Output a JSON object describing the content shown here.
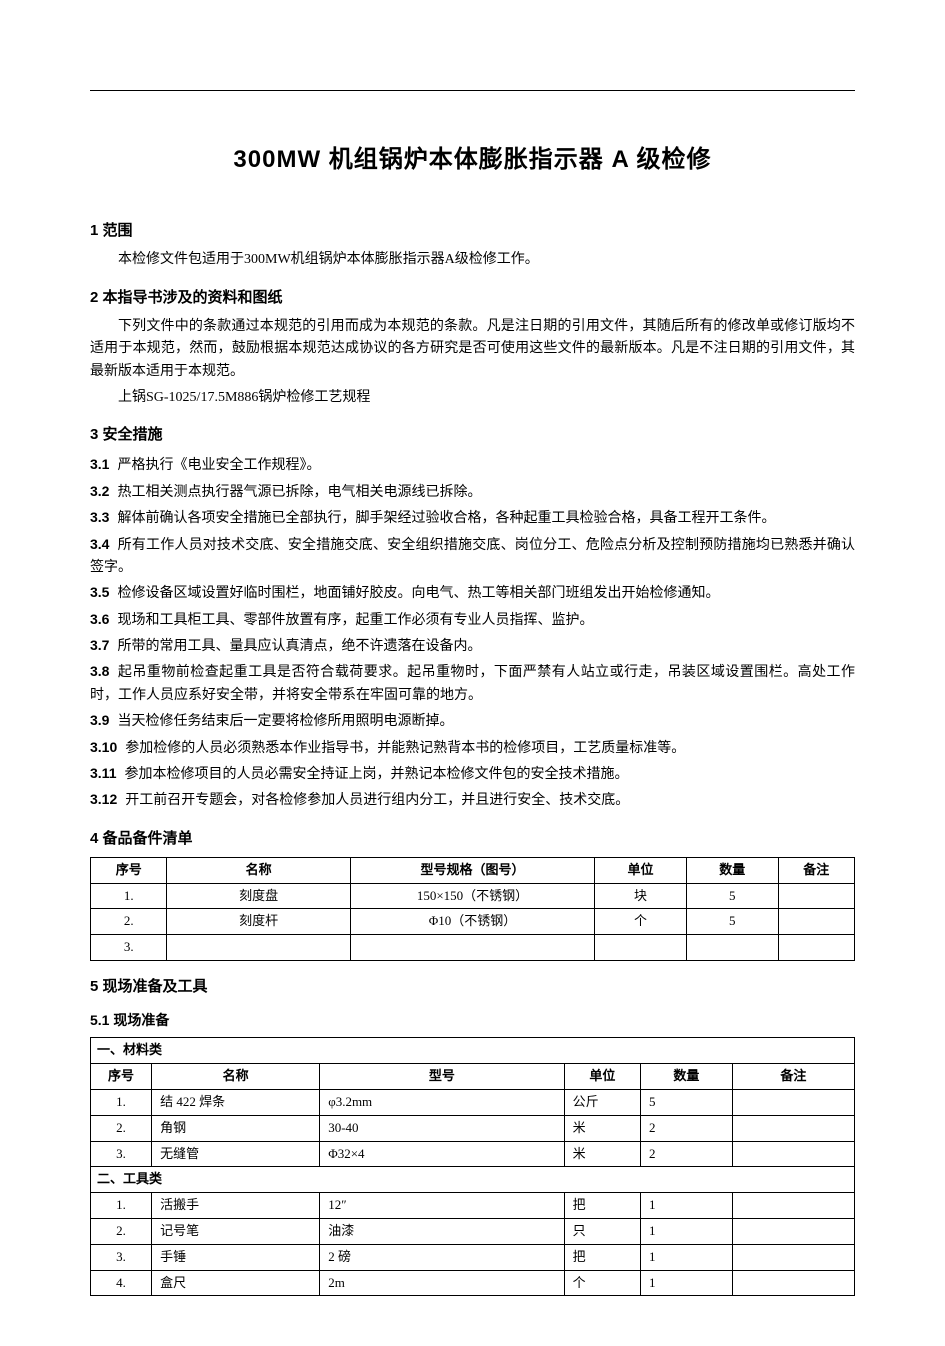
{
  "title": "300MW 机组锅炉本体膨胀指示器 A 级检修",
  "s1": {
    "heading": "1  范围",
    "p1": "本检修文件包适用于300MW机组锅炉本体膨胀指示器A级检修工作。"
  },
  "s2": {
    "heading": "2  本指导书涉及的资料和图纸",
    "p1": "下列文件中的条款通过本规范的引用而成为本规范的条款。凡是注日期的引用文件，其随后所有的修改单或修订版均不适用于本规范，然而，鼓励根据本规范达成协议的各方研究是否可使用这些文件的最新版本。凡是不注日期的引用文件，其最新版本适用于本规范。",
    "p2": "上锅SG-1025/17.5M886锅炉检修工艺规程"
  },
  "s3": {
    "heading": "3  安全措施",
    "items": [
      {
        "n": "3.1",
        "t": "严格执行《电业安全工作规程》。"
      },
      {
        "n": "3.2",
        "t": "热工相关测点执行器气源已拆除，电气相关电源线已拆除。"
      },
      {
        "n": "3.3",
        "t": "解体前确认各项安全措施已全部执行，脚手架经过验收合格，各种起重工具检验合格，具备工程开工条件。"
      },
      {
        "n": "3.4",
        "t": "所有工作人员对技术交底、安全措施交底、安全组织措施交底、岗位分工、危险点分析及控制预防措施均已熟悉并确认签字。"
      },
      {
        "n": "3.5",
        "t": "检修设备区域设置好临时围栏，地面铺好胶皮。向电气、热工等相关部门班组发出开始检修通知。"
      },
      {
        "n": "3.6",
        "t": "现场和工具柜工具、零部件放置有序，起重工作必须有专业人员指挥、监护。"
      },
      {
        "n": "3.7",
        "t": "所带的常用工具、量具应认真清点，绝不许遗落在设备内。"
      },
      {
        "n": "3.8",
        "t": "起吊重物前检查起重工具是否符合载荷要求。起吊重物时，下面严禁有人站立或行走，吊装区域设置围栏。高处工作时，工作人员应系好安全带，并将安全带系在牢固可靠的地方。"
      },
      {
        "n": "3.9",
        "t": "当天检修任务结束后一定要将检修所用照明电源断掉。"
      },
      {
        "n": "3.10",
        "t": "参加检修的人员必须熟悉本作业指导书，并能熟记熟背本书的检修项目，工艺质量标准等。"
      },
      {
        "n": "3.11",
        "t": "参加本检修项目的人员必需安全持证上岗，并熟记本检修文件包的安全技术措施。"
      },
      {
        "n": "3.12",
        "t": "开工前召开专题会，对各检修参加人员进行组内分工，并且进行安全、技术交底。"
      }
    ]
  },
  "s4": {
    "heading": "4  备品备件清单",
    "table": {
      "headers": [
        "序号",
        "名称",
        "型号规格（图号）",
        "单位",
        "数量",
        "备注"
      ],
      "rows": [
        [
          "1.",
          "刻度盘",
          "150×150（不锈钢）",
          "块",
          "5",
          ""
        ],
        [
          "2.",
          "刻度杆",
          "Φ10（不锈钢）",
          "个",
          "5",
          ""
        ],
        [
          "3.",
          "",
          "",
          "",
          "",
          ""
        ]
      ]
    }
  },
  "s5": {
    "heading": "5  现场准备及工具",
    "sub": "5.1  现场准备",
    "table": {
      "headers": [
        "序号",
        "名称",
        "型号",
        "单位",
        "数量",
        "备注"
      ],
      "cat1": "一、材料类",
      "rows1": [
        [
          "1.",
          "结 422 焊条",
          "φ3.2mm",
          "公斤",
          "5",
          ""
        ],
        [
          "2.",
          "角钢",
          "30-40",
          "米",
          "2",
          ""
        ],
        [
          "3.",
          "无缝管",
          "Φ32×4",
          "米",
          "2",
          ""
        ]
      ],
      "cat2": "二、工具类",
      "rows2": [
        [
          "1.",
          "活搬手",
          "12″",
          "把",
          "1",
          ""
        ],
        [
          "2.",
          "记号笔",
          "油漆",
          "只",
          "1",
          ""
        ],
        [
          "3.",
          "手锤",
          "2 磅",
          "把",
          "1",
          ""
        ],
        [
          "4.",
          "盒尺",
          "2m",
          "个",
          "1",
          ""
        ]
      ]
    }
  }
}
